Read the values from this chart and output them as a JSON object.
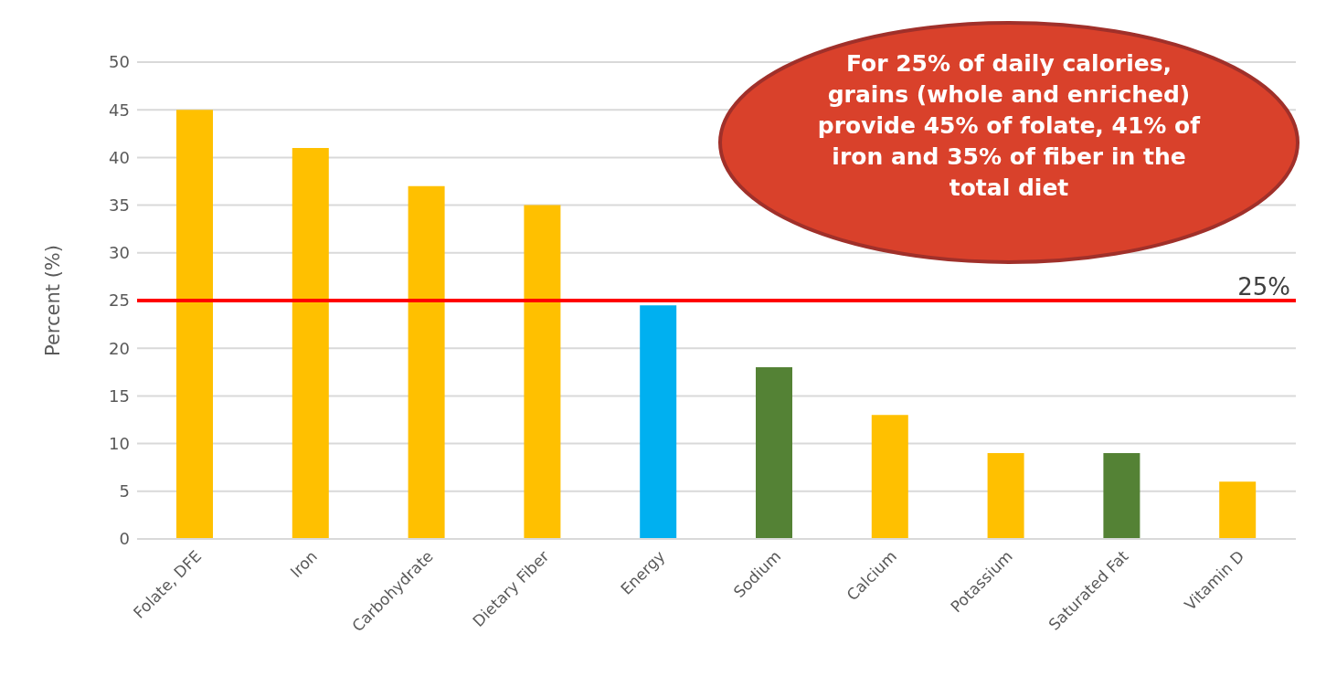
{
  "chart_data": {
    "type": "bar",
    "ylabel": "Percent (%)",
    "categories": [
      "Folate, DFE",
      "Iron",
      "Carbohydrate",
      "Dietary Fiber",
      "Energy",
      "Sodium",
      "Calcium",
      "Potassium",
      "Saturated Fat",
      "Vitamin D"
    ],
    "values": [
      45,
      41,
      37,
      35,
      24.5,
      18,
      13,
      9,
      9,
      6
    ],
    "colors": [
      "#ffc000",
      "#ffc000",
      "#ffc000",
      "#ffc000",
      "#00b0f0",
      "#548235",
      "#ffc000",
      "#ffc000",
      "#548235",
      "#ffc000"
    ],
    "ylim": [
      0,
      50
    ],
    "yticks": [
      0,
      5,
      10,
      15,
      20,
      25,
      30,
      35,
      40,
      45,
      50
    ],
    "grid": "y",
    "ref_lines": [
      {
        "axis": "y",
        "value": 25,
        "label": "25%",
        "color": "#ff0000"
      }
    ],
    "annotations": [
      "For 25% of daily calories, grains (whole and enriched) provide 45% of folate, 41% of iron and 35% of fiber in the total diet"
    ]
  }
}
